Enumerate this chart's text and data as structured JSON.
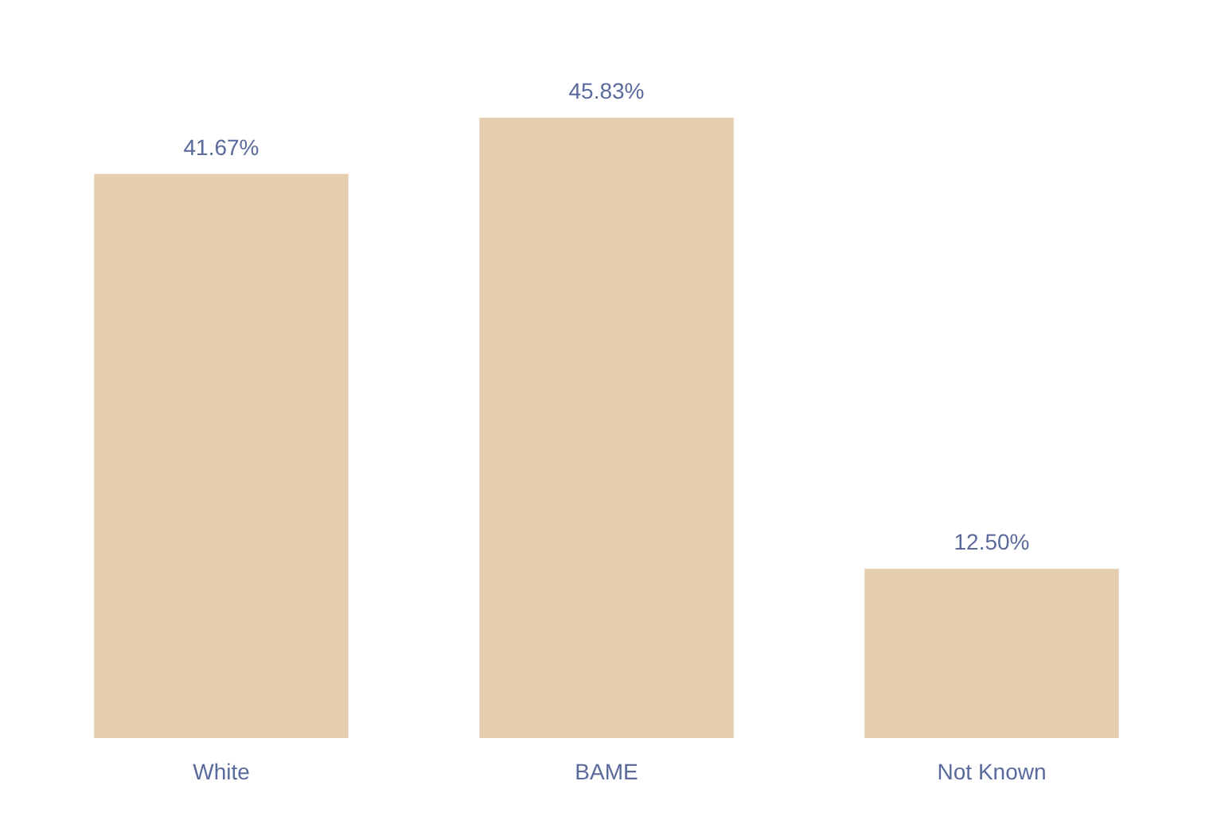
{
  "chart_data": {
    "type": "bar",
    "categories": [
      "White",
      "BAME",
      "Not Known"
    ],
    "values": [
      41.67,
      45.83,
      12.5
    ],
    "color": "#e5cdb0",
    "value_labels": [
      "41.67%",
      "45.83%",
      "12.50%"
    ]
  }
}
